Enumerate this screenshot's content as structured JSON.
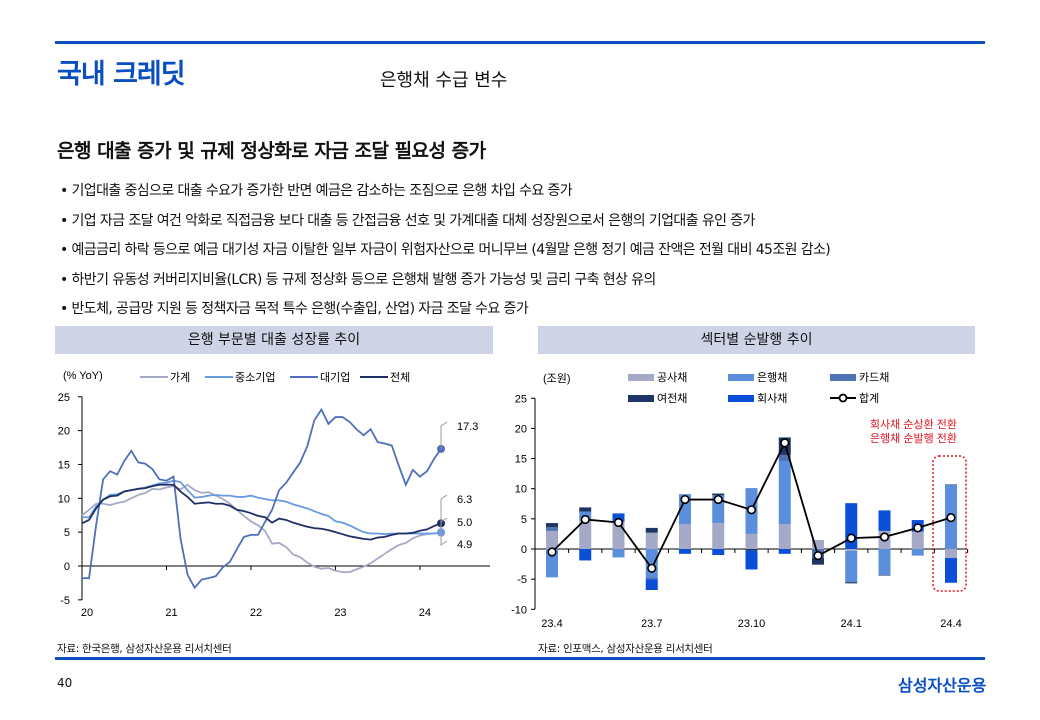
{
  "header": {
    "brand": "국내 크레딧",
    "subtitle": "은행채 수급 변수"
  },
  "headline": "은행 대출 증가 및 규제 정상화로 자금 조달 필요성 증가",
  "bullets": [
    "• 기업대출 중심으로 대출 수요가 증가한 반면 예금은 감소하는 조짐으로 은행 차입 수요 증가",
    "• 기업 자금 조달 여건 악화로 직접금융 보다 대출 등 간접금융 선호 및 가계대출 대체 성장원으로서 은행의 기업대출 유인 증가",
    "• 예금금리 하락 등으로 예금 대기성 자금 이탈한 일부 자금이 위험자산으로  머니무브 (4월말 은행 정기 예금 잔액은 전월 대비 45조원 감소)",
    "• 하반기 유동성 커버리지비율(LCR) 등 규제 정상화 등으로 은행채 발행 증가 가능성 및 금리 구축 현상 유의",
    "• 반도체, 공급망 지원 등 정책자금 목적 특수 은행(수출입, 산업) 자금 조달 수요 증가"
  ],
  "footer": {
    "page": "40",
    "logo": "삼성자산운용",
    "source_left": "자료: 한국은행, 삼성자산운용 리서치센터",
    "source_right": "자료: 인포맥스, 삼성자산운용 리서치센터"
  },
  "chart_data": [
    {
      "type": "line",
      "title": "은행 부문별 대출 성장률 추이",
      "ylabel": "(% YoY)",
      "ylim": [
        -5,
        25
      ],
      "yticks": [
        -5,
        0,
        5,
        10,
        15,
        20,
        25
      ],
      "xticks": [
        "20",
        "21",
        "22",
        "23",
        "24"
      ],
      "x_start": "2020-01",
      "x_end": "2024-04",
      "legend_position": "top",
      "series": [
        {
          "name": "가계",
          "color": "#a6a9c6",
          "end_label": "4.9",
          "values": [
            7.5,
            8.3,
            9.2,
            9.2,
            9.0,
            9.3,
            9.5,
            10,
            10.5,
            10.8,
            11.4,
            11.3,
            11.6,
            11.8,
            11.3,
            12,
            11.2,
            10.8,
            10.9,
            10.4,
            9.9,
            9.2,
            8.3,
            7.4,
            6.6,
            6,
            5.2,
            3.3,
            3.4,
            2.8,
            1.7,
            1.3,
            0.5,
            -0.1,
            -0.4,
            -0.3,
            -0.7,
            -0.9,
            -0.9,
            -0.5,
            -0.1,
            0.4,
            1.1,
            1.8,
            2.5,
            3.1,
            3.4,
            4.1,
            4.5,
            4.7,
            4.8,
            4.9
          ]
        },
        {
          "name": "중소기업",
          "color": "#6a9be0",
          "end_label": "5.0",
          "values": [
            7.2,
            7.2,
            8.8,
            9.8,
            10.5,
            10.6,
            11,
            11.2,
            11.4,
            11.6,
            11.9,
            12.2,
            12.3,
            12.6,
            12.4,
            11.2,
            10.1,
            10.2,
            10.4,
            10.5,
            10.4,
            10.4,
            10.2,
            10.2,
            10.4,
            10.1,
            9.9,
            9.7,
            9.7,
            9.5,
            9.1,
            8.8,
            8.5,
            8.1,
            7.7,
            7.4,
            6.6,
            6.4,
            6.0,
            5.5,
            5.0,
            4.8,
            4.8,
            4.7,
            4.8,
            4.8,
            4.8,
            4.8,
            4.8,
            4.8,
            4.8,
            5.0
          ]
        },
        {
          "name": "대기업",
          "color": "#4f70b8",
          "end_label": "17.3",
          "values": [
            -1.8,
            -1.8,
            6,
            12.8,
            14,
            13.5,
            15.5,
            17,
            15.3,
            15.1,
            14.3,
            12.8,
            12.6,
            13.2,
            4,
            -1.3,
            -3.2,
            -2,
            -1.8,
            -1.5,
            -0.2,
            0.6,
            2.5,
            4.3,
            4.6,
            4.6,
            6.5,
            8.3,
            11.2,
            12.3,
            13.8,
            15.3,
            17.7,
            21.5,
            23.1,
            21,
            22,
            22,
            21.3,
            20.2,
            19.3,
            20.2,
            18.3,
            18.1,
            17.8,
            14.8,
            12,
            14.2,
            13.2,
            14,
            15.8,
            17.3
          ]
        },
        {
          "name": "전체",
          "color": "#1f2f66",
          "end_label": "6.3",
          "values": [
            6.3,
            6.8,
            8.5,
            9.8,
            10.3,
            10.4,
            11,
            11.2,
            11.4,
            11.5,
            11.8,
            12,
            12,
            12,
            11,
            10.2,
            9.2,
            9.3,
            9.4,
            9.2,
            9.2,
            8.9,
            8.3,
            8.1,
            7.8,
            7.4,
            7.2,
            6.4,
            7,
            6.8,
            6.4,
            6.1,
            5.8,
            5.6,
            5.5,
            5.3,
            5,
            4.7,
            4.4,
            4.2,
            4,
            3.9,
            4.2,
            4.3,
            4.6,
            4.8,
            4.8,
            4.9,
            5.2,
            5.4,
            5.9,
            6.3
          ]
        }
      ]
    },
    {
      "type": "bar",
      "title": "섹터별 순발행 추이",
      "ylabel": "(조원)",
      "ylim": [
        -10,
        25
      ],
      "yticks": [
        -10,
        -5,
        0,
        5,
        10,
        15,
        20,
        25
      ],
      "categories": [
        "23.4",
        "23.5",
        "23.6",
        "23.7",
        "23.8",
        "23.9",
        "23.10",
        "23.11",
        "23.12",
        "24.1",
        "24.2",
        "24.3",
        "24.4"
      ],
      "xtick_labels": [
        "23.4",
        "23.7",
        "23.10",
        "24.1",
        "24.4"
      ],
      "legend_position": "top",
      "annotation": [
        "회사채 순상환 전환",
        "은행채 순발행 전환"
      ],
      "annotation_color": "#e0141e",
      "series": [
        {
          "name": "공사채",
          "color": "#a4a9c8",
          "values": [
            3,
            4.7,
            4.5,
            2.7,
            4.1,
            4.3,
            2.5,
            4.1,
            1.5,
            -0.3,
            3,
            2.9,
            -1.5
          ]
        },
        {
          "name": "은행채",
          "color": "#5b8fdc",
          "values": [
            -4.7,
            1.5,
            -1.4,
            -4.7,
            5,
            4.6,
            7.6,
            10.5,
            0,
            -5.2,
            -4.3,
            -1.1,
            10.6
          ]
        },
        {
          "name": "카드채",
          "color": "#4f72b5",
          "values": [
            0.6,
            0,
            0,
            -0.3,
            0,
            0,
            0,
            1,
            -1.5,
            0,
            0,
            0,
            0
          ]
        },
        {
          "name": "여전채",
          "color": "#1f3566",
          "values": [
            0.7,
            0.7,
            0,
            0.8,
            0,
            0.3,
            -0.3,
            2.9,
            -1.1,
            -0.2,
            -0.1,
            0,
            0.1
          ]
        },
        {
          "name": "회사채",
          "color": "#0a4fd8",
          "values": [
            0,
            -1.9,
            1.4,
            -1.8,
            -0.8,
            -1,
            -3.1,
            -0.8,
            0,
            7.6,
            3.4,
            1.9,
            -4.1
          ]
        },
        {
          "name": "합계",
          "type": "line",
          "color": "#000000",
          "values": [
            -0.5,
            4.9,
            4.4,
            -3.2,
            8.2,
            8.2,
            6.5,
            17.6,
            -1.1,
            1.8,
            2.0,
            3.5,
            5.2
          ]
        }
      ]
    }
  ]
}
